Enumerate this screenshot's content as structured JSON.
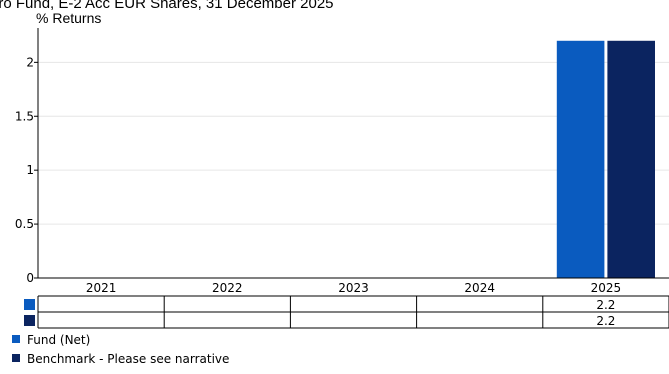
{
  "chart_data": {
    "type": "bar",
    "title": "uro Fund, E-2 Acc EUR Shares, 31 December 2025",
    "ylabel": "% Returns",
    "xlabel": "",
    "categories": [
      "2021",
      "2022",
      "2023",
      "2024",
      "2025"
    ],
    "ylim": [
      0,
      2.3
    ],
    "yticks": [
      0,
      0.5,
      1,
      1.5,
      2
    ],
    "ytick_labels": [
      "0",
      "0.5",
      "1",
      "1.5",
      "2"
    ],
    "grid": true,
    "legend_position": "bottom-left",
    "series": [
      {
        "name": "Fund (Net)",
        "color": "#0a5bbf",
        "values": [
          null,
          null,
          null,
          null,
          2.2
        ],
        "value_labels": [
          "",
          "",
          "",
          "",
          "2.2"
        ]
      },
      {
        "name": "Benchmark - Please see narrative",
        "color": "#0b2460",
        "values": [
          null,
          null,
          null,
          null,
          2.2
        ],
        "value_labels": [
          "",
          "",
          "",
          "",
          "2.2"
        ]
      }
    ]
  }
}
